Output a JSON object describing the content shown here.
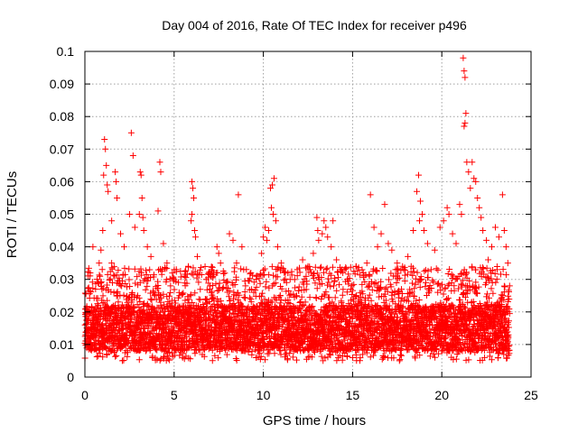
{
  "chart_data": {
    "type": "scatter",
    "title": "Day 004 of 2016, Rate Of TEC Index for receiver p496",
    "xlabel": "GPS time / hours",
    "ylabel": "ROTI / TECUs",
    "xlim": [
      0,
      25
    ],
    "ylim": [
      0,
      0.1
    ],
    "x_ticks": [
      0,
      5,
      10,
      15,
      20,
      25
    ],
    "x_tick_labels": [
      "0",
      "5",
      "10",
      "15",
      "20",
      "25"
    ],
    "y_ticks": [
      0,
      0.01,
      0.02,
      0.03,
      0.04,
      0.05,
      0.06,
      0.07,
      0.08,
      0.09,
      0.1
    ],
    "y_tick_labels": [
      "0",
      "0.01",
      "0.02",
      "0.03",
      "0.04",
      "0.05",
      "0.06",
      "0.07",
      "0.08",
      "0.09",
      "0.1"
    ],
    "grid": true,
    "marker": "plus",
    "marker_color": "#ff0000",
    "series": [
      {
        "name": "ROTI",
        "points": [
          [
            0.05,
            0.021
          ],
          [
            0.15,
            0.018
          ],
          [
            0.3,
            0.032
          ],
          [
            0.45,
            0.04
          ],
          [
            0.6,
            0.027
          ],
          [
            0.8,
            0.035
          ],
          [
            0.9,
            0.039
          ],
          [
            1.1,
            0.073
          ],
          [
            1.15,
            0.07
          ],
          [
            1.2,
            0.065
          ],
          [
            1.25,
            0.059
          ],
          [
            1.05,
            0.062
          ],
          [
            1.3,
            0.057
          ],
          [
            1.0,
            0.045
          ],
          [
            1.5,
            0.048
          ],
          [
            1.7,
            0.063
          ],
          [
            1.75,
            0.06
          ],
          [
            1.8,
            0.055
          ],
          [
            2.0,
            0.044
          ],
          [
            2.2,
            0.04
          ],
          [
            2.6,
            0.075
          ],
          [
            2.7,
            0.068
          ],
          [
            2.5,
            0.05
          ],
          [
            2.8,
            0.046
          ],
          [
            3.1,
            0.063
          ],
          [
            3.15,
            0.062
          ],
          [
            3.2,
            0.055
          ],
          [
            3.05,
            0.05
          ],
          [
            3.25,
            0.049
          ],
          [
            3.3,
            0.045
          ],
          [
            3.5,
            0.04
          ],
          [
            4.2,
            0.066
          ],
          [
            4.25,
            0.063
          ],
          [
            4.1,
            0.051
          ],
          [
            4.4,
            0.041
          ],
          [
            4.6,
            0.035
          ],
          [
            5.0,
            0.03
          ],
          [
            5.3,
            0.025
          ],
          [
            5.6,
            0.031
          ],
          [
            5.8,
            0.034
          ],
          [
            6.0,
            0.06
          ],
          [
            6.05,
            0.058
          ],
          [
            6.1,
            0.055
          ],
          [
            6.0,
            0.05
          ],
          [
            5.95,
            0.048
          ],
          [
            6.15,
            0.045
          ],
          [
            6.2,
            0.043
          ],
          [
            6.3,
            0.037
          ],
          [
            6.8,
            0.03
          ],
          [
            7.1,
            0.033
          ],
          [
            7.4,
            0.04
          ],
          [
            7.5,
            0.038
          ],
          [
            7.6,
            0.035
          ],
          [
            7.9,
            0.029
          ],
          [
            8.1,
            0.044
          ],
          [
            8.3,
            0.042
          ],
          [
            8.6,
            0.056
          ],
          [
            8.8,
            0.04
          ],
          [
            8.5,
            0.035
          ],
          [
            8.9,
            0.033
          ],
          [
            9.3,
            0.032
          ],
          [
            9.6,
            0.03
          ],
          [
            9.9,
            0.038
          ],
          [
            10.0,
            0.043
          ],
          [
            10.1,
            0.046
          ],
          [
            10.2,
            0.042
          ],
          [
            10.3,
            0.045
          ],
          [
            10.4,
            0.058
          ],
          [
            10.5,
            0.059
          ],
          [
            10.6,
            0.061
          ],
          [
            10.45,
            0.052
          ],
          [
            10.55,
            0.05
          ],
          [
            10.7,
            0.048
          ],
          [
            10.8,
            0.04
          ],
          [
            11.0,
            0.035
          ],
          [
            11.5,
            0.03
          ],
          [
            11.9,
            0.033
          ],
          [
            12.2,
            0.036
          ],
          [
            12.5,
            0.034
          ],
          [
            13.0,
            0.049
          ],
          [
            13.05,
            0.045
          ],
          [
            13.1,
            0.042
          ],
          [
            13.3,
            0.044
          ],
          [
            13.4,
            0.048
          ],
          [
            13.5,
            0.046
          ],
          [
            13.6,
            0.043
          ],
          [
            13.9,
            0.048
          ],
          [
            13.8,
            0.04
          ],
          [
            14.1,
            0.036
          ],
          [
            14.4,
            0.033
          ],
          [
            14.7,
            0.03
          ],
          [
            15.2,
            0.034
          ],
          [
            15.6,
            0.032
          ],
          [
            16.0,
            0.056
          ],
          [
            16.2,
            0.046
          ],
          [
            16.4,
            0.04
          ],
          [
            16.8,
            0.053
          ],
          [
            16.6,
            0.044
          ],
          [
            17.0,
            0.041
          ],
          [
            17.2,
            0.039
          ],
          [
            17.5,
            0.035
          ],
          [
            17.8,
            0.034
          ],
          [
            18.1,
            0.037
          ],
          [
            18.4,
            0.045
          ],
          [
            18.6,
            0.057
          ],
          [
            18.7,
            0.062
          ],
          [
            18.8,
            0.054
          ],
          [
            18.9,
            0.05
          ],
          [
            18.75,
            0.048
          ],
          [
            19.0,
            0.045
          ],
          [
            19.2,
            0.041
          ],
          [
            19.6,
            0.039
          ],
          [
            19.9,
            0.046
          ],
          [
            20.1,
            0.048
          ],
          [
            20.3,
            0.052
          ],
          [
            20.4,
            0.05
          ],
          [
            20.6,
            0.044
          ],
          [
            20.8,
            0.041
          ],
          [
            21.0,
            0.053
          ],
          [
            21.1,
            0.05
          ],
          [
            21.2,
            0.098
          ],
          [
            21.25,
            0.094
          ],
          [
            21.3,
            0.092
          ],
          [
            21.35,
            0.081
          ],
          [
            21.3,
            0.078
          ],
          [
            21.25,
            0.077
          ],
          [
            21.4,
            0.066
          ],
          [
            21.5,
            0.063
          ],
          [
            21.7,
            0.066
          ],
          [
            21.8,
            0.061
          ],
          [
            21.9,
            0.06
          ],
          [
            21.6,
            0.058
          ],
          [
            22.0,
            0.055
          ],
          [
            22.1,
            0.052
          ],
          [
            22.2,
            0.049
          ],
          [
            22.3,
            0.045
          ],
          [
            22.5,
            0.042
          ],
          [
            22.8,
            0.04
          ],
          [
            23.0,
            0.046
          ],
          [
            23.2,
            0.043
          ],
          [
            23.4,
            0.056
          ],
          [
            23.5,
            0.045
          ],
          [
            23.6,
            0.04
          ],
          [
            23.7,
            0.035
          ],
          [
            23.8,
            0.028
          ],
          [
            1.5,
            0.035
          ],
          [
            3.7,
            0.037
          ],
          [
            4.8,
            0.028
          ],
          [
            7.0,
            0.027
          ],
          [
            9.0,
            0.028
          ],
          [
            11.3,
            0.029
          ],
          [
            12.8,
            0.038
          ],
          [
            14.9,
            0.027
          ],
          [
            15.8,
            0.035
          ],
          [
            17.4,
            0.031
          ],
          [
            19.4,
            0.033
          ],
          [
            22.6,
            0.036
          ],
          [
            23.1,
            0.033
          ]
        ],
        "dense_band": {
          "x_range": [
            0.0,
            23.8
          ],
          "y_floor": 0.005,
          "y_core_min": 0.008,
          "y_core_max": 0.022,
          "y_spread_max": 0.034,
          "point_count": 5200,
          "x_step": 0.0046
        }
      }
    ]
  }
}
